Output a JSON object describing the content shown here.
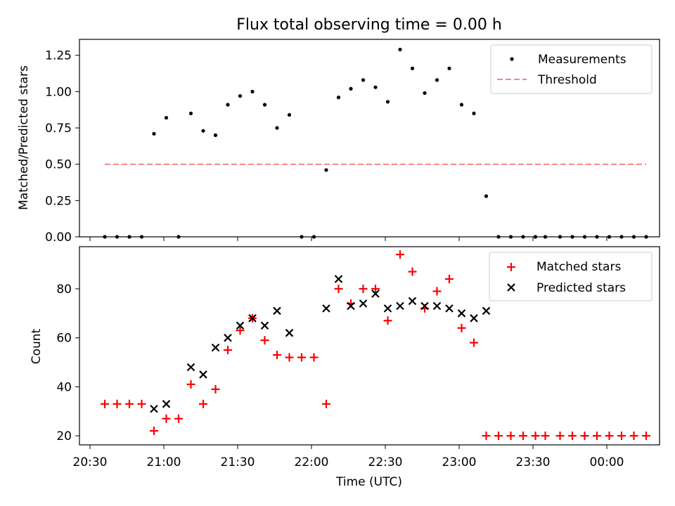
{
  "figure": {
    "title": "Flux total observing time = 0.00 h",
    "xlabel": "Time (UTC)",
    "xticks": [
      "20:30",
      "21:00",
      "21:30",
      "22:00",
      "22:30",
      "23:00",
      "23:30",
      "00:00"
    ]
  },
  "chart_data": [
    {
      "type": "scatter",
      "ylabel": "Matched/Predicted stars",
      "ylim": [
        0,
        1.36
      ],
      "yticks": [
        "0.00",
        "0.25",
        "0.50",
        "0.75",
        "1.00",
        "1.25"
      ],
      "legend_position": "top-right",
      "grid": false,
      "x_unit": "minutes after 20:30 UTC",
      "series": [
        {
          "name": "Measurements",
          "marker": "dot",
          "color": "#000000",
          "x": [
            6,
            11,
            16,
            21,
            26,
            31,
            36,
            41,
            46,
            51,
            56,
            61,
            66,
            71,
            76,
            81,
            86,
            91,
            96,
            101,
            106,
            111,
            116,
            121,
            126,
            131,
            136,
            141,
            146,
            151,
            156,
            161,
            166,
            171,
            176,
            181,
            185,
            191,
            196,
            201,
            206,
            211,
            216,
            221,
            226
          ],
          "y": [
            0,
            0,
            0,
            0,
            0.71,
            0.82,
            0,
            0.85,
            0.73,
            0.7,
            0.91,
            0.97,
            1.0,
            0.91,
            0.75,
            0.84,
            0,
            0,
            0.46,
            0.96,
            1.02,
            1.08,
            1.03,
            0.93,
            1.29,
            1.16,
            0.99,
            1.08,
            1.16,
            0.91,
            0.85,
            0.28,
            0,
            0,
            0,
            0,
            0,
            0,
            0,
            0,
            0,
            0,
            0,
            0,
            0
          ]
        },
        {
          "name": "Threshold",
          "style": "dashed",
          "color": "#ff8080",
          "x": [
            6,
            226
          ],
          "y": [
            0.5,
            0.5
          ]
        }
      ]
    },
    {
      "type": "scatter",
      "ylabel": "Count",
      "ylim": [
        16.3,
        97.2
      ],
      "yticks": [
        "20",
        "40",
        "60",
        "80"
      ],
      "legend_position": "top-right",
      "grid": false,
      "x_unit": "minutes after 20:30 UTC",
      "series": [
        {
          "name": "Matched stars",
          "marker": "+",
          "color": "#ff0000",
          "x": [
            6,
            11,
            16,
            21,
            26,
            31,
            36,
            41,
            46,
            51,
            56,
            61,
            66,
            71,
            76,
            81,
            86,
            91,
            96,
            101,
            106,
            111,
            116,
            121,
            126,
            131,
            136,
            141,
            146,
            151,
            156,
            161,
            166,
            171,
            176,
            181,
            185,
            191,
            196,
            201,
            206,
            211,
            216,
            221,
            226
          ],
          "y": [
            33,
            33,
            33,
            33,
            22,
            27,
            27,
            41,
            33,
            39,
            55,
            63,
            68,
            59,
            53,
            52,
            52,
            52,
            33,
            80,
            74,
            80,
            80,
            67,
            94,
            87,
            72,
            79,
            84,
            64,
            58,
            20,
            20,
            20,
            20,
            20,
            20,
            20,
            20,
            20,
            20,
            20,
            20,
            20,
            20
          ]
        },
        {
          "name": "Predicted stars",
          "marker": "x",
          "color": "#000000",
          "x": [
            26,
            31,
            41,
            46,
            51,
            56,
            61,
            66,
            71,
            76,
            81,
            96,
            101,
            106,
            111,
            116,
            121,
            126,
            131,
            136,
            141,
            146,
            151,
            156,
            161
          ],
          "y": [
            31,
            33,
            48,
            45,
            56,
            60,
            65,
            68,
            65,
            71,
            62,
            72,
            84,
            73,
            74,
            78,
            72,
            73,
            75,
            73,
            73,
            72,
            70,
            68,
            71
          ]
        }
      ]
    }
  ]
}
